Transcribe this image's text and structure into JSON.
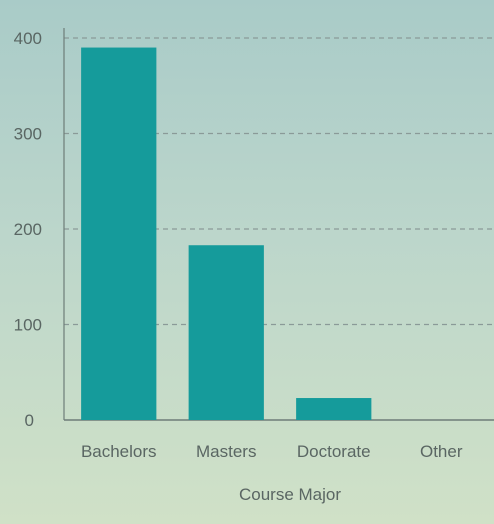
{
  "chart_data": {
    "type": "bar",
    "categories": [
      "Bachelors",
      "Masters",
      "Doctorate",
      "Other"
    ],
    "values": [
      390,
      183,
      23,
      0
    ],
    "xlabel": "Course Major",
    "ylabel": "",
    "ylim": [
      0,
      400
    ],
    "yticks": [
      0,
      100,
      200,
      300,
      400
    ],
    "ytick_labels": [
      "0",
      "100",
      "200",
      "300",
      "400"
    ],
    "grid": true,
    "grid_style": "dashed",
    "colors": {
      "bar": "#159b9b",
      "grid": "#8a9a98",
      "axis": "#6d7d78",
      "text": "#5a6663"
    }
  }
}
